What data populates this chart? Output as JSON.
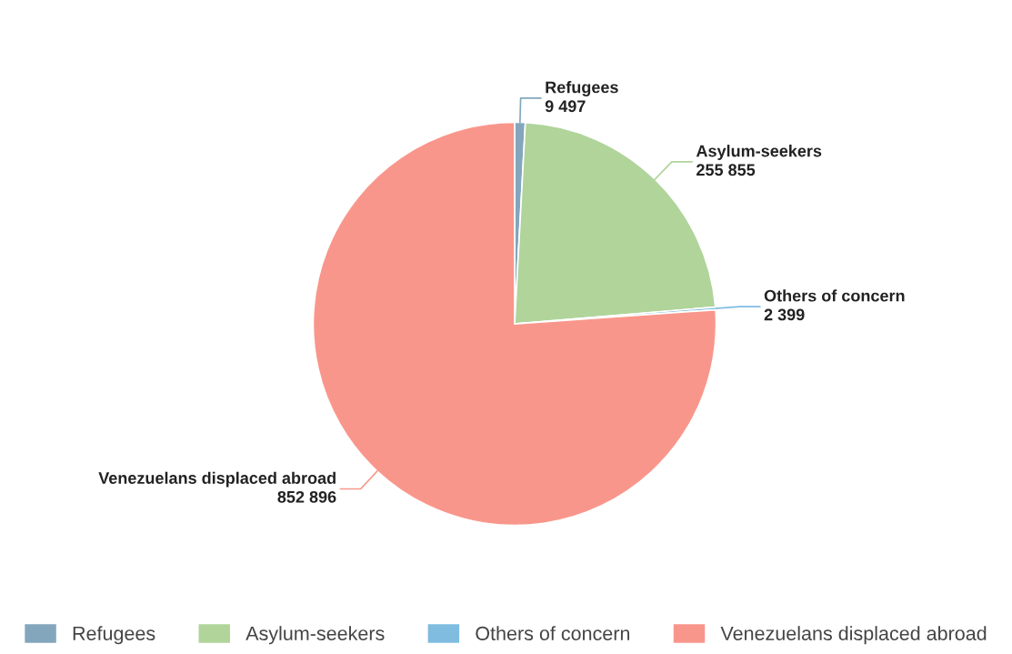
{
  "chart_data": {
    "type": "pie",
    "categories": [
      "Refugees",
      "Asylum-seekers",
      "Others of concern",
      "Venezuelans displaced abroad"
    ],
    "values": [
      9497,
      255855,
      2399,
      852896
    ],
    "value_labels": [
      "9 497",
      "255 855",
      "2 399",
      "852 896"
    ],
    "colors": [
      "#84a6bd",
      "#b0d49a",
      "#7fbce0",
      "#f9968b"
    ],
    "legend": "bottom"
  }
}
